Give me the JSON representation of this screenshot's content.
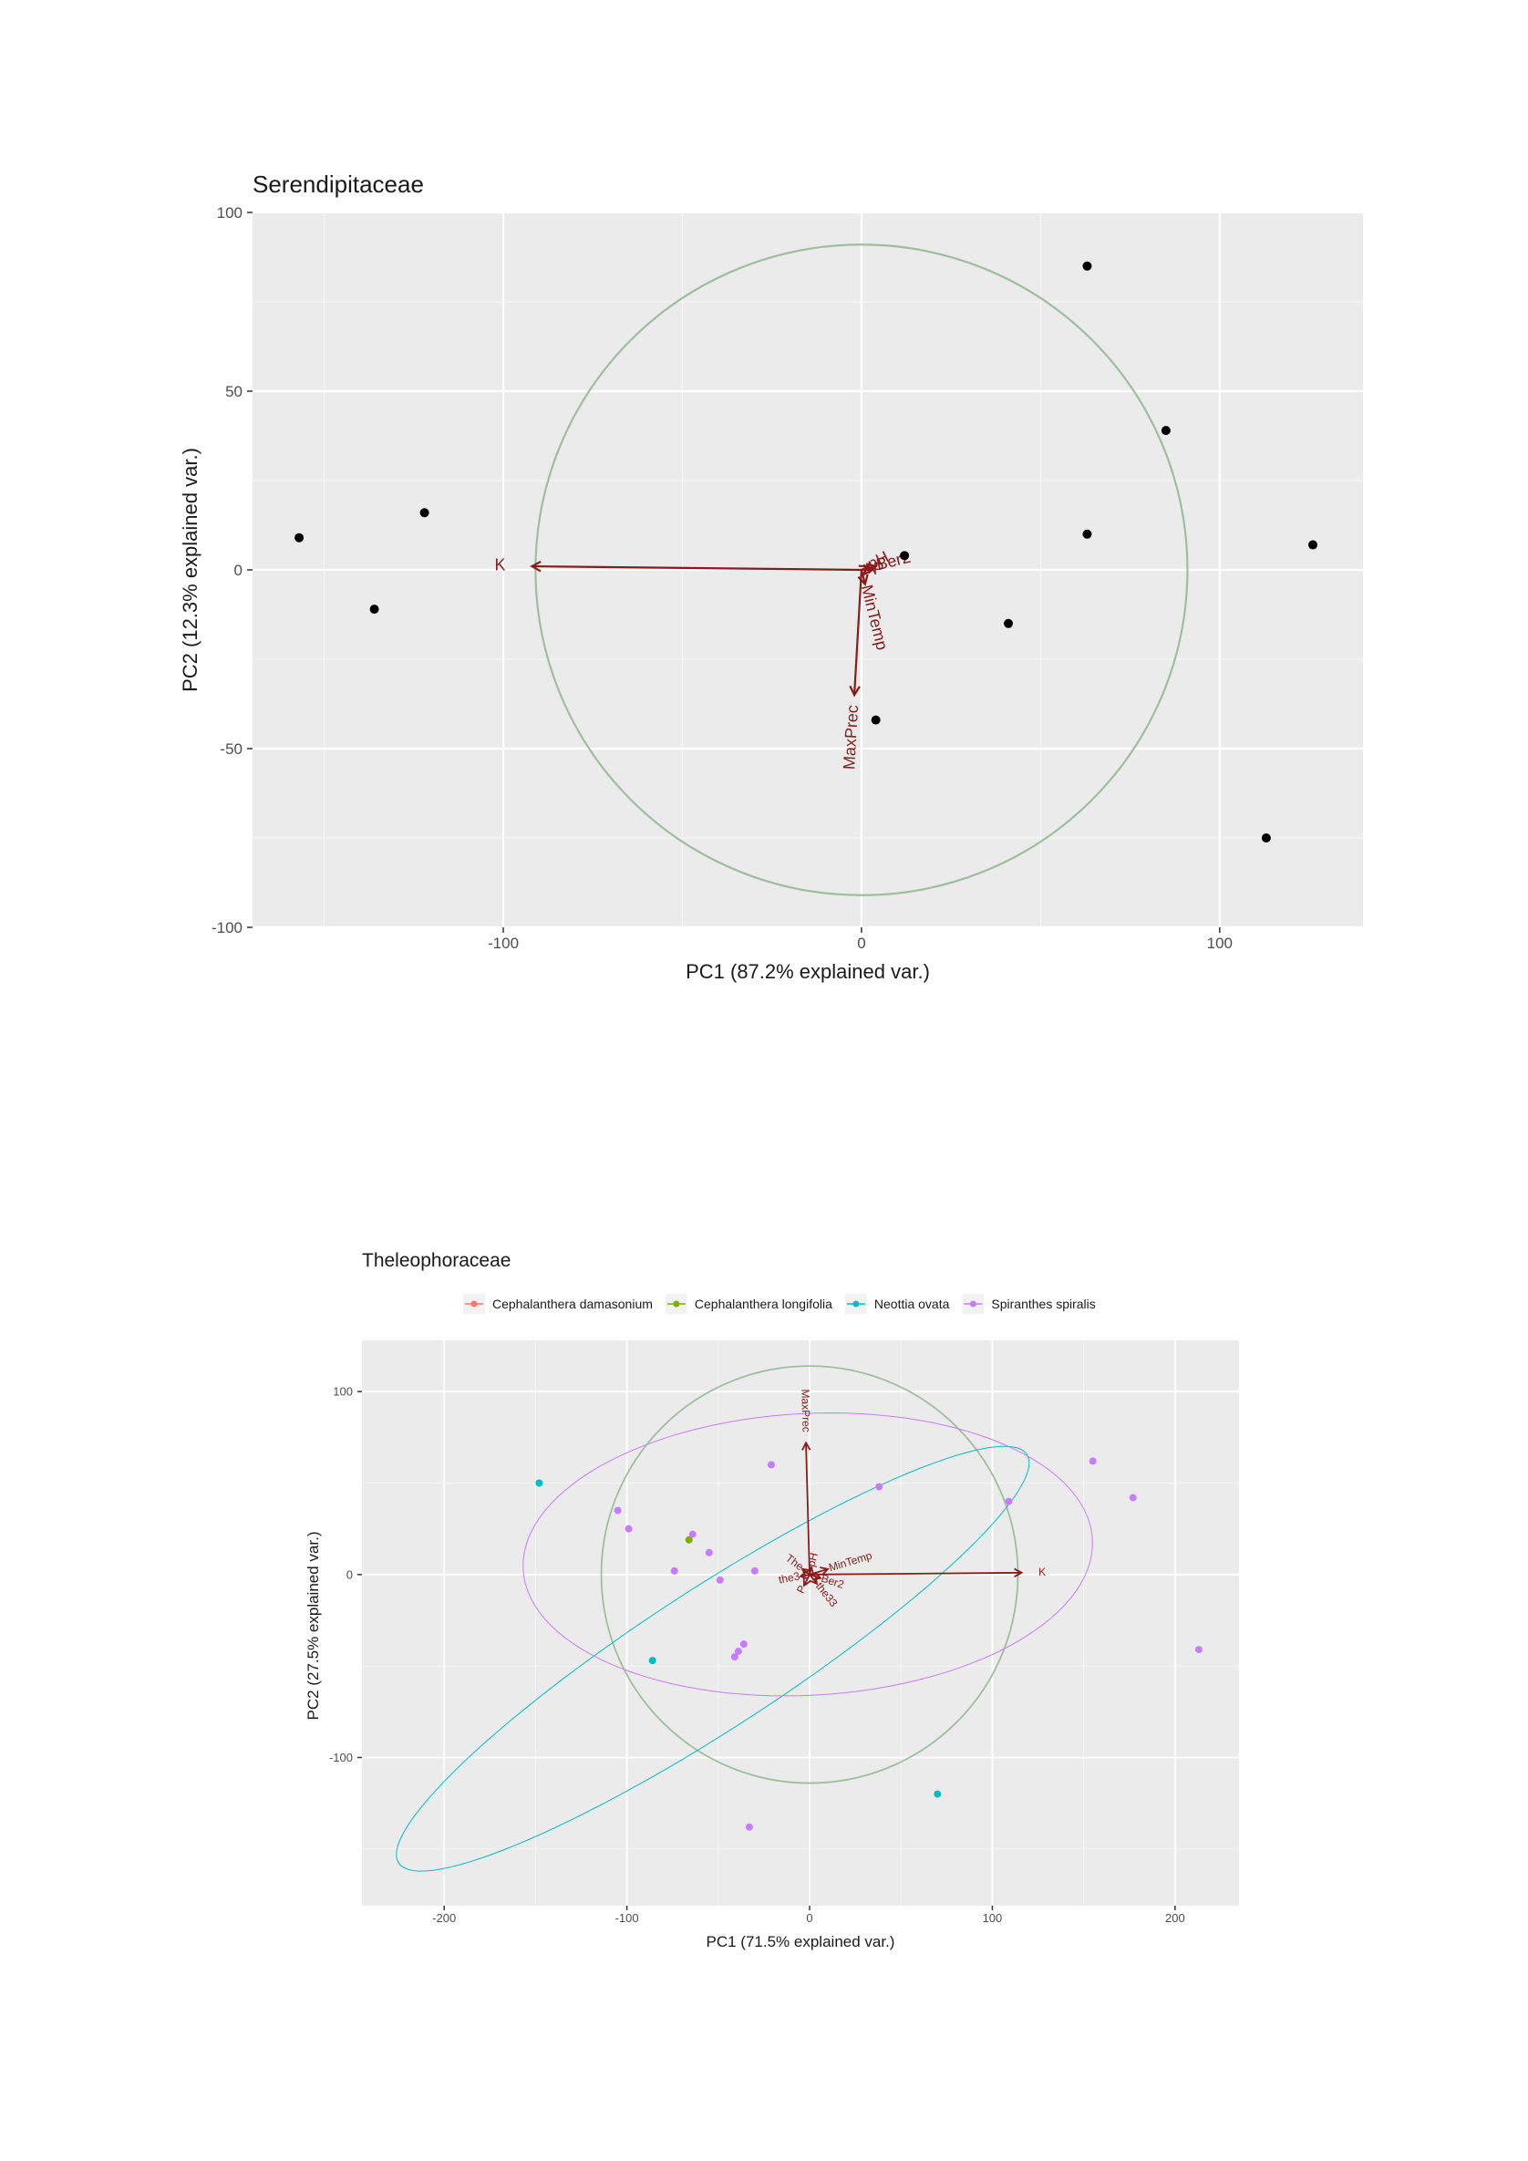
{
  "chart_data": [
    {
      "type": "scatter",
      "title": "Serendipitaceae",
      "xlabel": "PC1 (87.2% explained var.)",
      "ylabel": "PC2 (12.3% explained var.)",
      "xlim": [
        -170,
        140
      ],
      "ylim": [
        -100,
        100
      ],
      "x_ticks": [
        -100,
        0,
        100
      ],
      "y_ticks": [
        -100,
        -50,
        0,
        50,
        100
      ],
      "x_tick_labels": [
        "-100",
        "0",
        "100"
      ],
      "y_tick_labels": [
        "-100",
        "-50",
        "0",
        "50",
        "100"
      ],
      "grid": true,
      "point_color": "#000000",
      "circle_color": "#9dbf9d",
      "arrow_color": "#8b1a1a",
      "circle_radius": 91,
      "points": [
        {
          "x": -157,
          "y": 9
        },
        {
          "x": -136,
          "y": -11
        },
        {
          "x": -122,
          "y": 16
        },
        {
          "x": 12,
          "y": 4
        },
        {
          "x": 4,
          "y": -42
        },
        {
          "x": 41,
          "y": -15
        },
        {
          "x": 63,
          "y": 85
        },
        {
          "x": 63,
          "y": 10
        },
        {
          "x": 85,
          "y": 39
        },
        {
          "x": 113,
          "y": -75
        },
        {
          "x": 126,
          "y": 7
        }
      ],
      "arrows": [
        {
          "label": "K",
          "x": -92,
          "y": 1
        },
        {
          "label": "MaxPrec",
          "x": -2,
          "y": -35
        },
        {
          "label": "MinTemp",
          "x": 1,
          "y": -4
        },
        {
          "label": "pH",
          "x": 2,
          "y": 1
        },
        {
          "label": "Ber2",
          "x": 4,
          "y": 1
        },
        {
          "label": "P",
          "x": 3,
          "y": 0
        }
      ]
    },
    {
      "type": "scatter",
      "title": "Theleophoraceae",
      "xlabel": "PC1 (71.5% explained var.)",
      "ylabel": "PC2 (27.5% explained var.)",
      "xlim": [
        -245,
        235
      ],
      "ylim": [
        -181,
        128
      ],
      "x_ticks": [
        -200,
        -100,
        0,
        100,
        200
      ],
      "y_ticks": [
        -100,
        0,
        100
      ],
      "x_tick_labels": [
        "-200",
        "-100",
        "0",
        "100",
        "200"
      ],
      "y_tick_labels": [
        "-100",
        "0",
        "100"
      ],
      "grid": true,
      "legend_position": "top",
      "circle_color": "#9dbf9d",
      "circle_radius": 114,
      "arrow_color": "#8b1a1a",
      "series": [
        {
          "name": "Cephalanthera damasonium",
          "color": "#f8766d",
          "points": []
        },
        {
          "name": "Cephalanthera longifolia",
          "color": "#7cae00",
          "points": [
            {
              "x": -66,
              "y": 19
            }
          ]
        },
        {
          "name": "Neottia ovata",
          "color": "#00bfc4",
          "points": [
            {
              "x": -148,
              "y": 50
            },
            {
              "x": -86,
              "y": -47
            },
            {
              "x": 70,
              "y": -120
            }
          ],
          "ellipse": {
            "cx": -53,
            "cy": -46,
            "rx": 205,
            "ry": 38,
            "angle": 33
          }
        },
        {
          "name": "Spiranthes spiralis",
          "color": "#c77cff",
          "points": [
            {
              "x": -105,
              "y": 35
            },
            {
              "x": -99,
              "y": 25
            },
            {
              "x": -74,
              "y": 2
            },
            {
              "x": -64,
              "y": 22
            },
            {
              "x": -55,
              "y": 12
            },
            {
              "x": -49,
              "y": -3
            },
            {
              "x": -41,
              "y": -45
            },
            {
              "x": -39,
              "y": -42
            },
            {
              "x": -36,
              "y": -38
            },
            {
              "x": -30,
              "y": 2
            },
            {
              "x": -21,
              "y": 60
            },
            {
              "x": 38,
              "y": 48
            },
            {
              "x": 109,
              "y": 40
            },
            {
              "x": 155,
              "y": 62
            },
            {
              "x": 177,
              "y": 42
            },
            {
              "x": 213,
              "y": -41
            },
            {
              "x": -33,
              "y": -138
            }
          ],
          "ellipse": {
            "cx": -1,
            "cy": 11,
            "rx": 156,
            "ry": 77,
            "angle": 3
          }
        }
      ],
      "arrows": [
        {
          "label": "MaxPrec",
          "x": -2,
          "y": 72
        },
        {
          "label": "K",
          "x": 116,
          "y": 1
        },
        {
          "label": "MinTemp",
          "x": 10,
          "y": 3
        },
        {
          "label": "Ber2",
          "x": 6,
          "y": -2
        },
        {
          "label": "the33",
          "x": 4,
          "y": -5
        },
        {
          "label": "P",
          "x": -3,
          "y": -6
        },
        {
          "label": "the3",
          "x": -5,
          "y": -1
        },
        {
          "label": "The",
          "x": -4,
          "y": 3
        },
        {
          "label": "pH",
          "x": 1,
          "y": 4
        }
      ]
    }
  ]
}
